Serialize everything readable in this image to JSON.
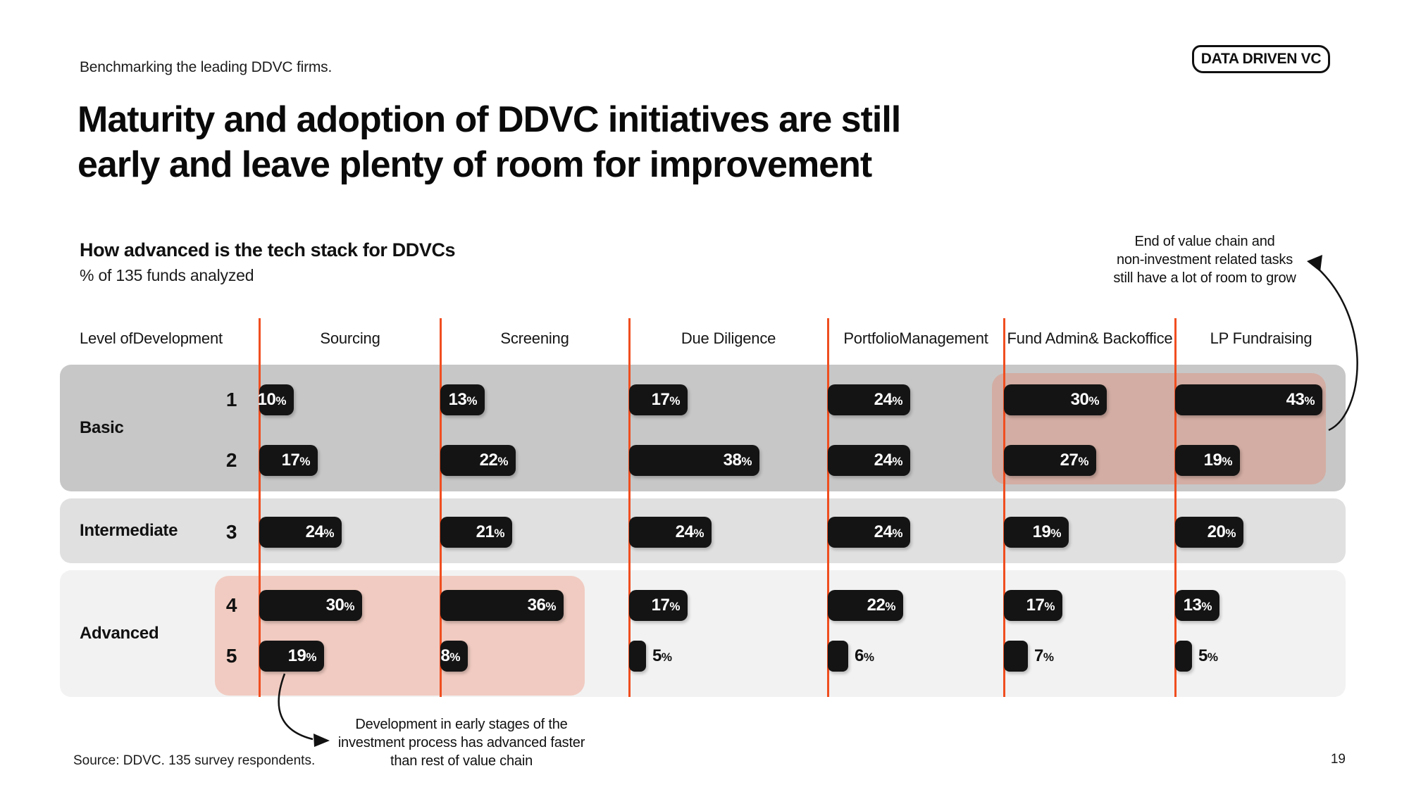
{
  "page": {
    "eyebrow": "Benchmarking the leading DDVC firms.",
    "badge_label": "DATA DRIVEN VC",
    "title_line1": "Maturity and adoption of DDVC initiatives are still",
    "title_line2": "early and leave plenty of room for improvement",
    "source": "Source: DDVC. 135 survey respondents.",
    "page_number": "19"
  },
  "chart": {
    "heading": "How advanced is the tech stack for DDVCs",
    "unit_note": "% of 135 funds analyzed",
    "row_axis_header": [
      "Level of",
      "Development"
    ],
    "column_headers": [
      [
        "Sourcing"
      ],
      [
        "Screening"
      ],
      [
        "Due Diligence"
      ],
      [
        "Portfolio",
        "Management"
      ],
      [
        "Fund Admin",
        "& Backoffice"
      ],
      [
        "LP Fundraising"
      ]
    ],
    "groups": [
      {
        "label": "Basic",
        "levels": [
          1,
          2
        ]
      },
      {
        "label": "Intermediate",
        "levels": [
          3
        ]
      },
      {
        "label": "Advanced",
        "levels": [
          4,
          5
        ]
      }
    ],
    "annotations": {
      "top_right": [
        "End of value chain and",
        "non-investment related tasks",
        "still have a lot of room to grow"
      ],
      "bottom_left": [
        "Development in early stages of the",
        "investment process has advanced faster",
        "than rest of value chain"
      ]
    },
    "colors": {
      "accent_orange": "#F04E20",
      "bar_black": "#141414",
      "band_basic": "#C7C7C7",
      "band_intermediate": "#E0E0E0",
      "band_advanced": "#F2F2F2",
      "highlight_salmon": "rgba(238,112,80,0.30)"
    }
  },
  "chart_data": {
    "type": "bar",
    "orientation": "horizontal",
    "title": "How advanced is the tech stack for DDVCs",
    "subtitle": "% of 135 funds analyzed",
    "unit": "%",
    "categories": [
      "Sourcing",
      "Screening",
      "Due Diligence",
      "Portfolio Management",
      "Fund Admin & Backoffice",
      "LP Fundraising"
    ],
    "levels": [
      {
        "level": 1,
        "group": "Basic",
        "values": [
          10,
          13,
          17,
          24,
          30,
          43
        ]
      },
      {
        "level": 2,
        "group": "Basic",
        "values": [
          17,
          22,
          38,
          24,
          27,
          19
        ]
      },
      {
        "level": 3,
        "group": "Intermediate",
        "values": [
          24,
          21,
          24,
          24,
          19,
          20
        ]
      },
      {
        "level": 4,
        "group": "Advanced",
        "values": [
          30,
          36,
          17,
          22,
          17,
          13
        ]
      },
      {
        "level": 5,
        "group": "Advanced",
        "values": [
          19,
          8,
          5,
          6,
          7,
          5
        ]
      }
    ],
    "highlighted_regions": [
      {
        "levels": [
          1,
          2
        ],
        "categories": [
          "Fund Admin & Backoffice",
          "LP Fundraising"
        ],
        "annotation": "top_right"
      },
      {
        "levels": [
          4,
          5
        ],
        "categories": [
          "Sourcing",
          "Screening"
        ],
        "annotation": "bottom_left"
      }
    ],
    "xlim": [
      0,
      45
    ],
    "legend": false,
    "grid": false
  }
}
